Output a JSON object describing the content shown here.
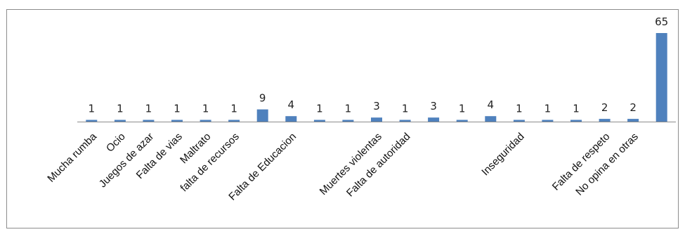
{
  "chart_data": {
    "type": "bar",
    "categories": [
      "Mucha rumba",
      "Ocio",
      "Juegos de azar",
      "Falta de vias",
      "Maltrato",
      "falta de recursos",
      "",
      "Falta de Educacion",
      "",
      "",
      "Muertes violentas",
      "Falta de autoridad",
      "",
      "",
      "",
      "Inseguridad",
      "",
      "",
      "Falta de respeto",
      "No opina en otras",
      ""
    ],
    "values": [
      1,
      1,
      1,
      1,
      1,
      1,
      9,
      4,
      1,
      1,
      3,
      1,
      3,
      1,
      4,
      1,
      1,
      1,
      2,
      2,
      65
    ],
    "bar_color": "#4f81bd",
    "title": "",
    "xlabel": "",
    "ylabel": "",
    "ylim": [
      0,
      65
    ],
    "grid": false,
    "legend": "none"
  }
}
